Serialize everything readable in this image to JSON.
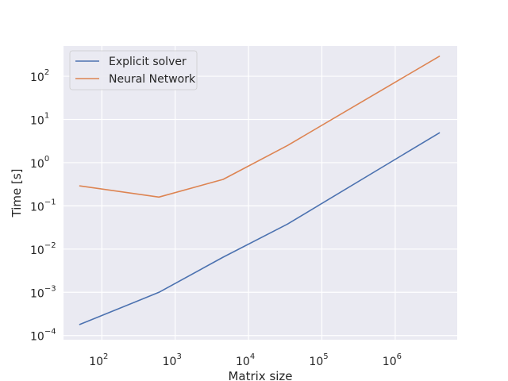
{
  "chart_data": {
    "type": "line",
    "title": "",
    "xlabel": "Matrix size",
    "ylabel": "Time [s]",
    "xscale": "log",
    "yscale": "log",
    "xlim": [
      30,
      7000000
    ],
    "ylim": [
      8e-05,
      500
    ],
    "grid": true,
    "legend_position": "top-left",
    "background_color": "#eaeaf2",
    "grid_color": "#ffffff",
    "x_ticks": [
      {
        "value": 100,
        "base": "10",
        "exp": "2"
      },
      {
        "value": 1000,
        "base": "10",
        "exp": "3"
      },
      {
        "value": 10000,
        "base": "10",
        "exp": "4"
      },
      {
        "value": 100000,
        "base": "10",
        "exp": "5"
      },
      {
        "value": 1000000,
        "base": "10",
        "exp": "6"
      }
    ],
    "y_ticks": [
      {
        "value": 0.0001,
        "base": "10",
        "exp": "−4"
      },
      {
        "value": 0.001,
        "base": "10",
        "exp": "−3"
      },
      {
        "value": 0.01,
        "base": "10",
        "exp": "−2"
      },
      {
        "value": 0.1,
        "base": "10",
        "exp": "−1"
      },
      {
        "value": 1,
        "base": "10",
        "exp": "0"
      },
      {
        "value": 10,
        "base": "10",
        "exp": "1"
      },
      {
        "value": 100,
        "base": "10",
        "exp": "2"
      }
    ],
    "series": [
      {
        "name": "Explicit solver",
        "color": "#4c72b0",
        "x": [
          50,
          600,
          4500,
          34000,
          4000000
        ],
        "y": [
          0.00018,
          0.001,
          0.0065,
          0.038,
          4.9
        ]
      },
      {
        "name": "Neural Network",
        "color": "#dd8452",
        "x": [
          50,
          600,
          4500,
          34000,
          4000000
        ],
        "y": [
          0.29,
          0.16,
          0.41,
          2.5,
          290
        ]
      }
    ]
  }
}
